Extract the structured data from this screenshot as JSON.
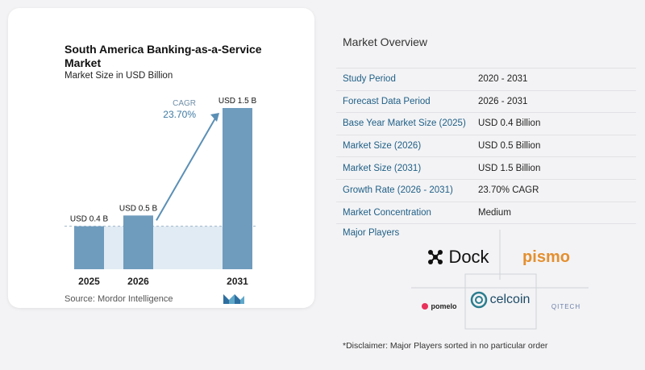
{
  "chart_data": {
    "type": "bar",
    "title": "South America Banking-as-a-Service Market",
    "subtitle": "Market Size in USD Billion",
    "categories": [
      "2025",
      "2026",
      "2031"
    ],
    "values": [
      0.4,
      0.5,
      1.5
    ],
    "value_labels": [
      "USD 0.4 B",
      "USD 0.5 B",
      "USD 1.5 B"
    ],
    "cagr_label": "CAGR",
    "cagr_value": "23.70%",
    "bar_color": "#6f9cbd",
    "bar_color_light": "#a9c6dc",
    "shade_color": "#e1ebf3",
    "grid": false,
    "ylim": [
      0,
      1.5
    ]
  },
  "source": "Source:  Mordor Intelligence",
  "overview": {
    "title": "Market Overview",
    "rows": [
      {
        "label": "Study Period",
        "value": "2020 - 2031"
      },
      {
        "label": "Forecast Data Period",
        "value": "2026 - 2031"
      },
      {
        "label": "Base Year Market Size (2025)",
        "value": "USD 0.4 Billion"
      },
      {
        "label": "Market Size (2026)",
        "value": "USD 0.5 Billion"
      },
      {
        "label": "Market Size (2031)",
        "value": "USD 1.5 Billion"
      },
      {
        "label": "Growth Rate (2026 - 2031)",
        "value": "23.70% CAGR"
      },
      {
        "label": "Market Concentration",
        "value": "Medium"
      }
    ]
  },
  "players": {
    "title": "Major Players",
    "logos": [
      "Dock",
      "pismo",
      "pomelo",
      "celcoin",
      "QITECH"
    ]
  },
  "disclaimer": "*Disclaimer: Major Players sorted in no particular order",
  "colors": {
    "accent": "#1f5f86",
    "arrow": "#5b8fb5"
  }
}
